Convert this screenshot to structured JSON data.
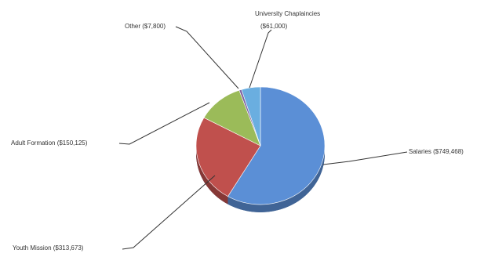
{
  "chart_data": {
    "type": "pie",
    "title": "",
    "three_d": true,
    "legend": "none",
    "slices": [
      {
        "label": "Salaries ($749,468)",
        "value": 749468,
        "color": "#5b8fd6"
      },
      {
        "label": "Youth Mission ($313,673)",
        "value": 313673,
        "color": "#c0504d"
      },
      {
        "label": "Adult Formation ($150,125)",
        "value": 150125,
        "color": "#9bbb59"
      },
      {
        "label": "Other ($7,800)",
        "value": 7800,
        "color": "#8064a2"
      },
      {
        "label": "University Chaplaincies ($61,000)",
        "value": 61000,
        "color": "#6aaee0"
      }
    ]
  }
}
